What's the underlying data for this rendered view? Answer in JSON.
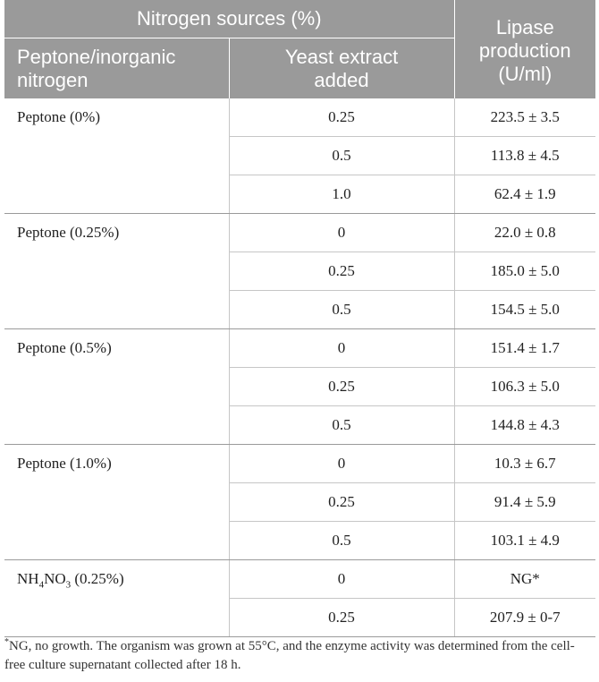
{
  "header": {
    "group_title": "Nitrogen sources (%)",
    "col_source_line1": "Peptone/inorganic",
    "col_source_line2": "nitrogen",
    "col_yeast_line1": "Yeast extract",
    "col_yeast_line2": "added",
    "col_lipase_line1": "Lipase",
    "col_lipase_line2": "production",
    "col_lipase_line3": "(U/ml)"
  },
  "groups": [
    {
      "source": "Peptone (0%)",
      "rows": [
        {
          "yeast": "0.25",
          "lipase": "223.5 ± 3.5"
        },
        {
          "yeast": "0.5",
          "lipase": "113.8 ± 4.5"
        },
        {
          "yeast": "1.0",
          "lipase": "62.4 ± 1.9"
        }
      ]
    },
    {
      "source": "Peptone (0.25%)",
      "rows": [
        {
          "yeast": "0",
          "lipase": "22.0 ± 0.8"
        },
        {
          "yeast": "0.25",
          "lipase": "185.0 ± 5.0"
        },
        {
          "yeast": "0.5",
          "lipase": "154.5 ± 5.0"
        }
      ]
    },
    {
      "source": "Peptone (0.5%)",
      "rows": [
        {
          "yeast": "0",
          "lipase": "151.4 ± 1.7"
        },
        {
          "yeast": "0.25",
          "lipase": "106.3 ± 5.0"
        },
        {
          "yeast": "0.5",
          "lipase": "144.8 ± 4.3"
        }
      ]
    },
    {
      "source": "Peptone (1.0%)",
      "rows": [
        {
          "yeast": "0",
          "lipase": "10.3 ± 6.7"
        },
        {
          "yeast": "0.25",
          "lipase": "91.4 ± 5.9"
        },
        {
          "yeast": "0.5",
          "lipase": "103.1 ± 4.9"
        }
      ]
    },
    {
      "source_parts": {
        "a": "NH",
        "sub1": "4",
        "b": "NO",
        "sub2": "3",
        "c": " (0.25%)"
      },
      "rows": [
        {
          "yeast": "0",
          "lipase": "NG*"
        },
        {
          "yeast": "0.25",
          "lipase": "207.9 ± 0-7"
        }
      ]
    }
  ],
  "footnote": {
    "marker": "*",
    "text": "NG, no growth. The organism was grown at 55°C, and the enzyme activity was determined from the cell-free culture supernatant collected after 18 h."
  }
}
